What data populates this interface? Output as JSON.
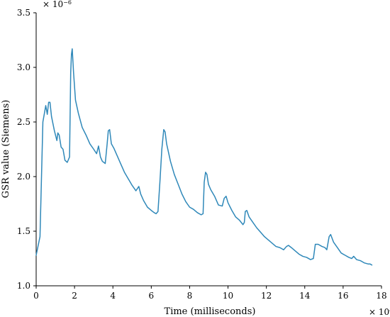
{
  "chart_data": {
    "type": "line",
    "xlabel": "Time (milliseconds)",
    "ylabel": "GSR value (Siemens)",
    "x_multiplier": "× 10",
    "x_multiplier_exp": "4",
    "y_multiplier": "× 10",
    "y_multiplier_exp": "−6",
    "xlim": [
      0,
      180000
    ],
    "ylim": [
      1e-06,
      3.5e-06
    ],
    "x_ticks": [
      0,
      20000,
      40000,
      60000,
      80000,
      100000,
      120000,
      140000,
      160000,
      180000
    ],
    "x_tick_labels": [
      "0",
      "2",
      "4",
      "6",
      "8",
      "10",
      "12",
      "14",
      "16",
      "18"
    ],
    "y_ticks": [
      1e-06,
      1.5e-06,
      2e-06,
      2.5e-06,
      3e-06,
      3.5e-06
    ],
    "y_tick_labels": [
      "1.0",
      "1.5",
      "2.0",
      "2.5",
      "3.0",
      "3.5"
    ],
    "grid": false,
    "series": [
      {
        "color": "#2f88b9",
        "x": [
          0,
          2000,
          3500,
          5000,
          5800,
          6500,
          7200,
          8000,
          9500,
          10800,
          11300,
          12000,
          13000,
          14000,
          15000,
          16200,
          17400,
          18000,
          18400,
          18800,
          19500,
          20500,
          22000,
          24000,
          26000,
          28000,
          30000,
          31500,
          32500,
          33500,
          34500,
          36000,
          37000,
          37600,
          38300,
          39200,
          40500,
          42000,
          44000,
          46000,
          48000,
          50000,
          52000,
          53500,
          54500,
          56000,
          58000,
          60000,
          61500,
          62500,
          63500,
          64500,
          65500,
          66500,
          67200,
          68000,
          70000,
          72000,
          74000,
          76000,
          78000,
          80000,
          82000,
          84000,
          86000,
          87000,
          87600,
          88300,
          89000,
          89800,
          91000,
          93000,
          95000,
          97000,
          98000,
          99000,
          100000,
          102000,
          104000,
          106000,
          107800,
          108500,
          109000,
          109800,
          111000,
          113000,
          115000,
          117000,
          119000,
          121000,
          123000,
          125000,
          127000,
          129000,
          130500,
          131500,
          133000,
          135000,
          137000,
          139000,
          141000,
          143000,
          144500,
          145500,
          147000,
          149000,
          150500,
          151500,
          152000,
          152700,
          153500,
          155000,
          157000,
          159000,
          161000,
          163000,
          164500,
          165500,
          167000,
          169000,
          171000,
          173000,
          174000,
          175000
        ],
        "y": [
          1.28e-06,
          1.45e-06,
          2.5e-06,
          2.65e-06,
          2.57e-06,
          2.68e-06,
          2.68e-06,
          2.55e-06,
          2.42e-06,
          2.33e-06,
          2.4e-06,
          2.38e-06,
          2.27e-06,
          2.25e-06,
          2.15e-06,
          2.13e-06,
          2.18e-06,
          2.95e-06,
          3.12e-06,
          3.17e-06,
          2.95e-06,
          2.7e-06,
          2.58e-06,
          2.45e-06,
          2.38e-06,
          2.3e-06,
          2.25e-06,
          2.21e-06,
          2.28e-06,
          2.18e-06,
          2.14e-06,
          2.12e-06,
          2.3e-06,
          2.42e-06,
          2.43e-06,
          2.3e-06,
          2.26e-06,
          2.2e-06,
          2.12e-06,
          2.04e-06,
          1.98e-06,
          1.92e-06,
          1.87e-06,
          1.91e-06,
          1.84e-06,
          1.78e-06,
          1.72e-06,
          1.69e-06,
          1.67e-06,
          1.66e-06,
          1.68e-06,
          1.95e-06,
          2.25e-06,
          2.43e-06,
          2.41e-06,
          2.3e-06,
          2.14e-06,
          2.02e-06,
          1.93e-06,
          1.84e-06,
          1.77e-06,
          1.72e-06,
          1.7e-06,
          1.67e-06,
          1.65e-06,
          1.66e-06,
          1.95e-06,
          2.04e-06,
          2.02e-06,
          1.93e-06,
          1.88e-06,
          1.82e-06,
          1.74e-06,
          1.73e-06,
          1.8e-06,
          1.82e-06,
          1.76e-06,
          1.69e-06,
          1.63e-06,
          1.6e-06,
          1.56e-06,
          1.58e-06,
          1.68e-06,
          1.69e-06,
          1.63e-06,
          1.58e-06,
          1.53e-06,
          1.49e-06,
          1.45e-06,
          1.42e-06,
          1.39e-06,
          1.36e-06,
          1.35e-06,
          1.33e-06,
          1.36e-06,
          1.37e-06,
          1.35e-06,
          1.32e-06,
          1.29e-06,
          1.27e-06,
          1.26e-06,
          1.24e-06,
          1.25e-06,
          1.38e-06,
          1.38e-06,
          1.36e-06,
          1.35e-06,
          1.33e-06,
          1.38e-06,
          1.45e-06,
          1.47e-06,
          1.4e-06,
          1.35e-06,
          1.3e-06,
          1.28e-06,
          1.26e-06,
          1.25e-06,
          1.27e-06,
          1.24e-06,
          1.23e-06,
          1.21e-06,
          1.2e-06,
          1.2e-06,
          1.19e-06
        ]
      }
    ]
  }
}
